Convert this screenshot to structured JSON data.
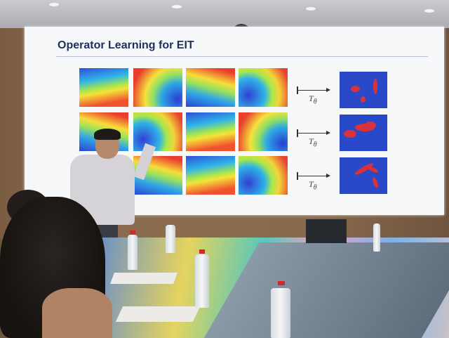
{
  "slide": {
    "title": "Operator Learning for EIT",
    "rows": [
      {
        "operator_label": "T",
        "subscript": "θ"
      },
      {
        "operator_label": "T",
        "subscript": "θ"
      },
      {
        "operator_label": "T",
        "subscript": "θ"
      }
    ]
  },
  "colors": {
    "title": "#1f2f5c",
    "result_background": "#2a49c8",
    "inclusion": "#d8323a"
  }
}
